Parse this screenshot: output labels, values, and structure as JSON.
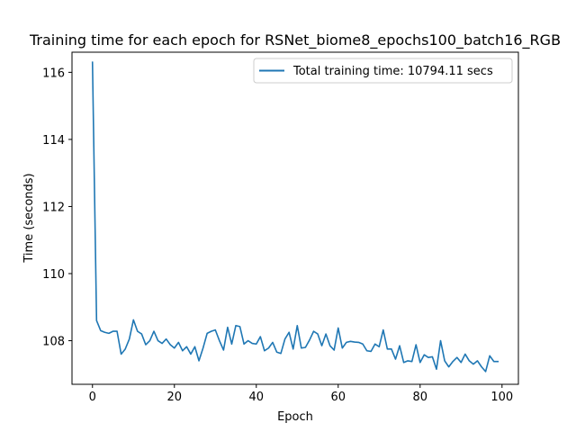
{
  "chart_data": {
    "type": "line",
    "title": "Training time for each epoch for RSNet_biome8_epochs100_batch16_RGB",
    "xlabel": "Epoch",
    "ylabel": "Time (seconds)",
    "xlim": [
      -5,
      104
    ],
    "ylim": [
      106.7,
      116.6
    ],
    "xticks": [
      0,
      20,
      40,
      60,
      80,
      100
    ],
    "yticks": [
      108,
      110,
      112,
      114,
      116
    ],
    "legend_position": "top-right",
    "grid": false,
    "series": [
      {
        "name": "Total training time: 10794.11 secs",
        "color": "#1f77b4",
        "x": [
          0,
          1,
          2,
          3,
          4,
          5,
          6,
          7,
          8,
          9,
          10,
          11,
          12,
          13,
          14,
          15,
          16,
          17,
          18,
          19,
          20,
          21,
          22,
          23,
          24,
          25,
          26,
          27,
          28,
          29,
          30,
          31,
          32,
          33,
          34,
          35,
          36,
          37,
          38,
          39,
          40,
          41,
          42,
          43,
          44,
          45,
          46,
          47,
          48,
          49,
          50,
          51,
          52,
          53,
          54,
          55,
          56,
          57,
          58,
          59,
          60,
          61,
          62,
          63,
          64,
          65,
          66,
          67,
          68,
          69,
          70,
          71,
          72,
          73,
          74,
          75,
          76,
          77,
          78,
          79,
          80,
          81,
          82,
          83,
          84,
          85,
          86,
          87,
          88,
          89,
          90,
          91,
          92,
          93,
          94,
          95,
          96,
          97,
          98,
          99
        ],
        "values": [
          116.3,
          108.6,
          108.3,
          108.25,
          108.22,
          108.28,
          108.28,
          107.6,
          107.75,
          108.05,
          108.62,
          108.28,
          108.2,
          107.88,
          108.0,
          108.28,
          108.0,
          107.92,
          108.05,
          107.88,
          107.78,
          107.95,
          107.7,
          107.82,
          107.6,
          107.82,
          107.4,
          107.78,
          108.22,
          108.28,
          108.32,
          108.0,
          107.72,
          108.4,
          107.9,
          108.45,
          108.42,
          107.9,
          108.0,
          107.92,
          107.9,
          108.12,
          107.7,
          107.78,
          107.95,
          107.66,
          107.62,
          108.05,
          108.25,
          107.75,
          108.45,
          107.78,
          107.8,
          108.02,
          108.28,
          108.2,
          107.85,
          108.2,
          107.85,
          107.72,
          108.38,
          107.78,
          107.95,
          107.98,
          107.96,
          107.95,
          107.9,
          107.7,
          107.68,
          107.9,
          107.82,
          108.32,
          107.75,
          107.75,
          107.45,
          107.85,
          107.35,
          107.4,
          107.38,
          107.88,
          107.35,
          107.58,
          107.5,
          107.52,
          107.15,
          108.0,
          107.4,
          107.22,
          107.38,
          107.5,
          107.35,
          107.6,
          107.4,
          107.3,
          107.4,
          107.22,
          107.08,
          107.55,
          107.38,
          107.38
        ]
      }
    ]
  }
}
